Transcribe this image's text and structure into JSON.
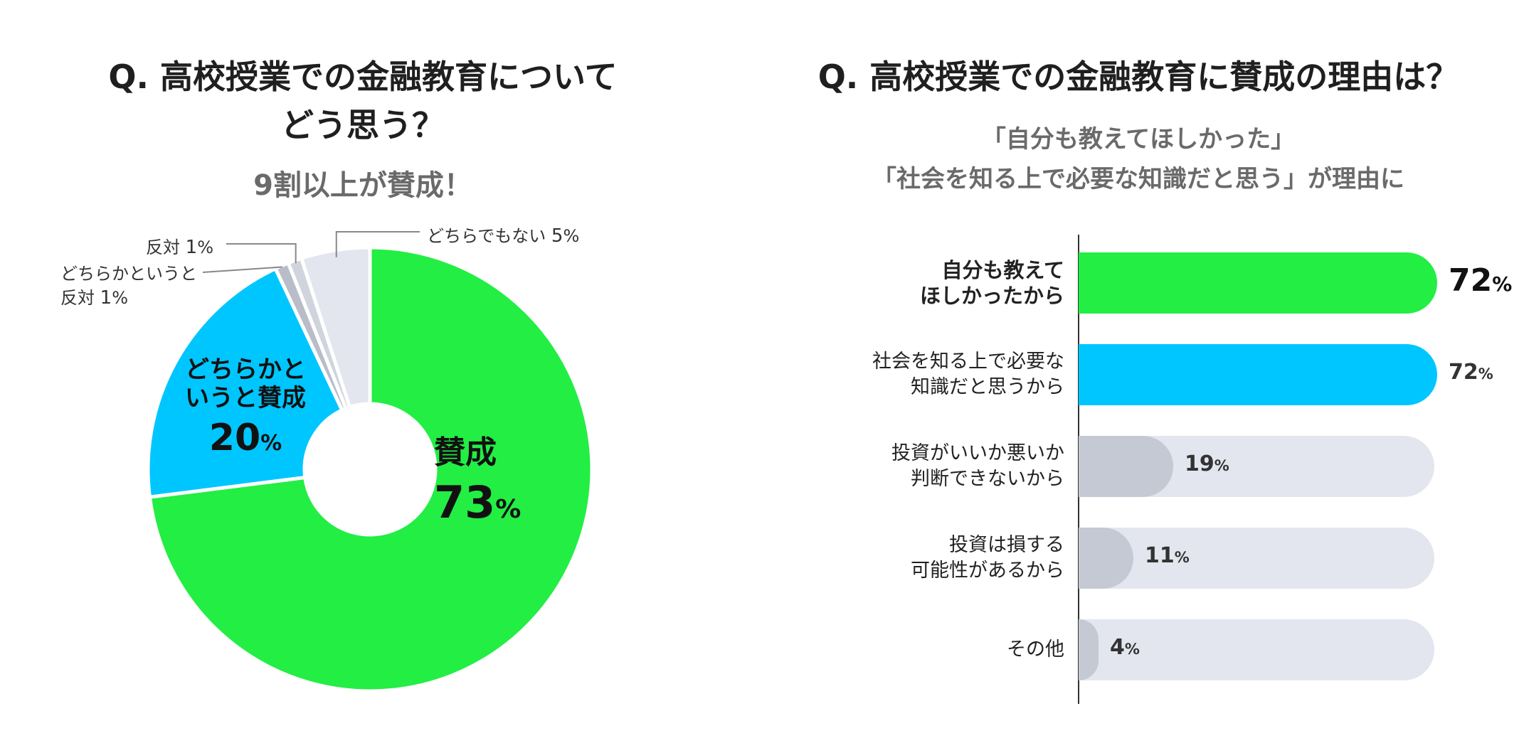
{
  "left": {
    "title_line1": "Q. 高校授業での金融教育について",
    "title_line2": "どう思う？",
    "subtitle": "9割以上が賛成！",
    "labels": {
      "agree_name": "賛成",
      "agree_num": "73",
      "somewhat_agree_line1": "どちらかと",
      "somewhat_agree_line2": "いうと賛成",
      "somewhat_agree_num": "20",
      "neither_text": "どちらでもない",
      "neither_num": "5",
      "somewhat_oppose_line1": "どちらかというと",
      "somewhat_oppose_line2": "反対",
      "somewhat_oppose_num": "1",
      "oppose_text": "反対",
      "oppose_num": "1",
      "percent_sign": "%"
    }
  },
  "right": {
    "title": "Q. 高校授業での金融教育に賛成の理由は？",
    "subtitle_line1": "「自分も教えてほしかった」",
    "subtitle_line2": "「社会を知る上で必要な知識だと思う」が理由に",
    "percent_sign": "%"
  },
  "colors": {
    "green": "#22EE44",
    "blue": "#00C6FF",
    "gray": "#C4C9D3",
    "light_gray": "#E3E6EE",
    "dark_gray": "#B8BDC8",
    "track": "#E3E6EE"
  },
  "chart_data": [
    {
      "type": "pie",
      "title": "Q. 高校授業での金融教育について どう思う？",
      "subtitle": "9割以上が賛成！",
      "unit": "%",
      "slices": [
        {
          "label": "賛成",
          "value": 73,
          "color": "#22EE44"
        },
        {
          "label": "どちらかというと賛成",
          "value": 20,
          "color": "#00C6FF"
        },
        {
          "label": "どちらかというと反対",
          "value": 1,
          "color": "#B8BDC8"
        },
        {
          "label": "反対",
          "value": 1,
          "color": "#D0D4DD"
        },
        {
          "label": "どちらでもない",
          "value": 5,
          "color": "#E3E6EE"
        }
      ]
    },
    {
      "type": "bar",
      "orientation": "horizontal",
      "title": "Q. 高校授業での金融教育に賛成の理由は？",
      "unit": "%",
      "xlim": [
        0,
        100
      ],
      "bars": [
        {
          "label_line1": "自分も教えて",
          "label_line2": "ほしかったから",
          "value": 72,
          "color": "#22EE44",
          "emphasis": true
        },
        {
          "label_line1": "社会を知る上で必要な",
          "label_line2": "知識だと思うから",
          "value": 72,
          "color": "#00C6FF",
          "emphasis": false
        },
        {
          "label_line1": "投資がいいか悪いか",
          "label_line2": "判断できないから",
          "value": 19,
          "color": "#C4C9D3",
          "emphasis": false
        },
        {
          "label_line1": "投資は損する",
          "label_line2": "可能性があるから",
          "value": 11,
          "color": "#C4C9D3",
          "emphasis": false
        },
        {
          "label_line1": "その他",
          "label_line2": "",
          "value": 4,
          "color": "#C4C9D3",
          "emphasis": false
        }
      ]
    }
  ]
}
